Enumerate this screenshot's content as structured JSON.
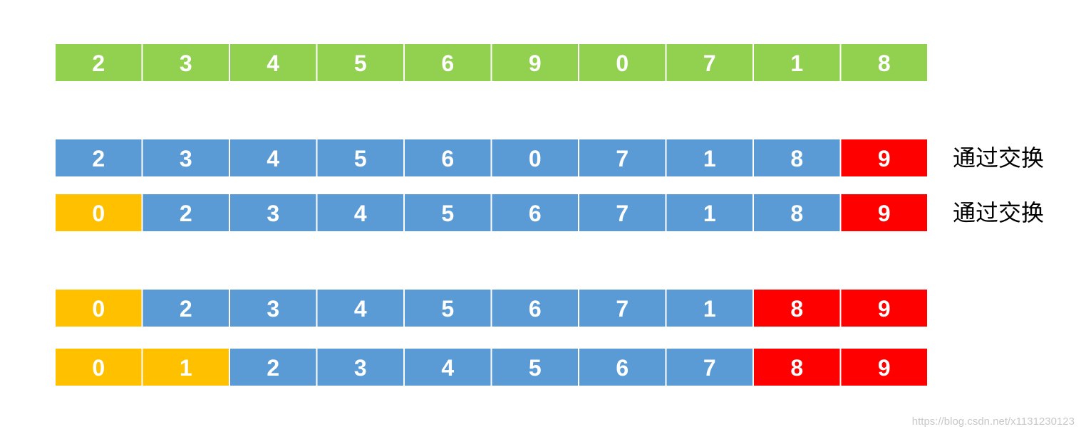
{
  "rows": [
    {
      "cells": [
        2,
        3,
        4,
        5,
        6,
        9,
        0,
        7,
        1,
        8
      ],
      "colors": [
        "#92d050",
        "#92d050",
        "#92d050",
        "#92d050",
        "#92d050",
        "#92d050",
        "#92d050",
        "#92d050",
        "#92d050",
        "#92d050"
      ]
    },
    {
      "cells": [
        2,
        3,
        4,
        5,
        6,
        0,
        7,
        1,
        8,
        9
      ],
      "colors": [
        "#5b9bd5",
        "#5b9bd5",
        "#5b9bd5",
        "#5b9bd5",
        "#5b9bd5",
        "#5b9bd5",
        "#5b9bd5",
        "#5b9bd5",
        "#5b9bd5",
        "#ff0000"
      ],
      "note": "通过交换"
    },
    {
      "cells": [
        0,
        2,
        3,
        4,
        5,
        6,
        7,
        1,
        8,
        9
      ],
      "colors": [
        "#ffc000",
        "#5b9bd5",
        "#5b9bd5",
        "#5b9bd5",
        "#5b9bd5",
        "#5b9bd5",
        "#5b9bd5",
        "#5b9bd5",
        "#5b9bd5",
        "#ff0000"
      ],
      "note": "通过交换"
    },
    {
      "cells": [
        0,
        2,
        3,
        4,
        5,
        6,
        7,
        1,
        8,
        9
      ],
      "colors": [
        "#ffc000",
        "#5b9bd5",
        "#5b9bd5",
        "#5b9bd5",
        "#5b9bd5",
        "#5b9bd5",
        "#5b9bd5",
        "#5b9bd5",
        "#ff0000",
        "#ff0000"
      ]
    },
    {
      "cells": [
        0,
        1,
        2,
        3,
        4,
        5,
        6,
        7,
        8,
        9
      ],
      "colors": [
        "#ffc000",
        "#ffc000",
        "#5b9bd5",
        "#5b9bd5",
        "#5b9bd5",
        "#5b9bd5",
        "#5b9bd5",
        "#5b9bd5",
        "#ff0000",
        "#ff0000"
      ]
    }
  ],
  "watermark": "https://blog.csdn.net/x1131230123"
}
